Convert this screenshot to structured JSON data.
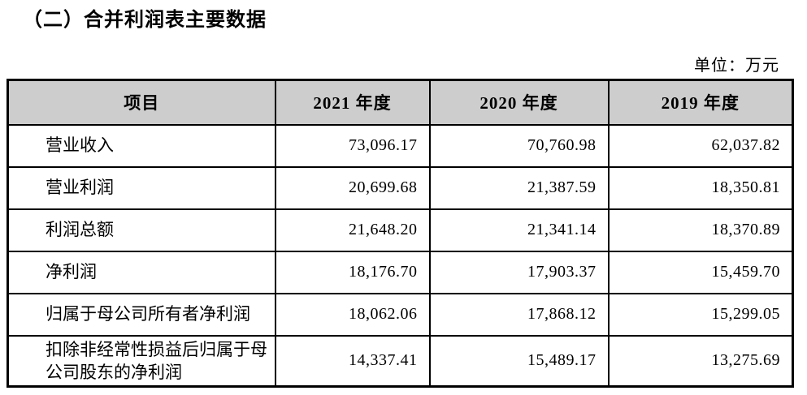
{
  "page": {
    "section_title": "（二）合并利润表主要数据",
    "unit_label": "单位：万元"
  },
  "table": {
    "columns": [
      "项目",
      "2021 年度",
      "2020 年度",
      "2019 年度"
    ],
    "rows": [
      {
        "item": "营业收入",
        "values": [
          "73,096.17",
          "70,760.98",
          "62,037.82"
        ]
      },
      {
        "item": "营业利润",
        "values": [
          "20,699.68",
          "21,387.59",
          "18,350.81"
        ]
      },
      {
        "item": "利润总额",
        "values": [
          "21,648.20",
          "21,341.14",
          "18,370.89"
        ]
      },
      {
        "item": "净利润",
        "values": [
          "18,176.70",
          "17,903.37",
          "15,459.70"
        ]
      },
      {
        "item": "归属于母公司所有者净利润",
        "values": [
          "18,062.06",
          "17,868.12",
          "15,299.05"
        ]
      },
      {
        "item": "扣除非经常性损益后归属于母公司股东的净利润",
        "values": [
          "14,337.41",
          "15,489.17",
          "13,275.69"
        ]
      }
    ],
    "colors": {
      "header_bg": "#cdcdcd",
      "border": "#000000",
      "text": "#000000"
    }
  }
}
